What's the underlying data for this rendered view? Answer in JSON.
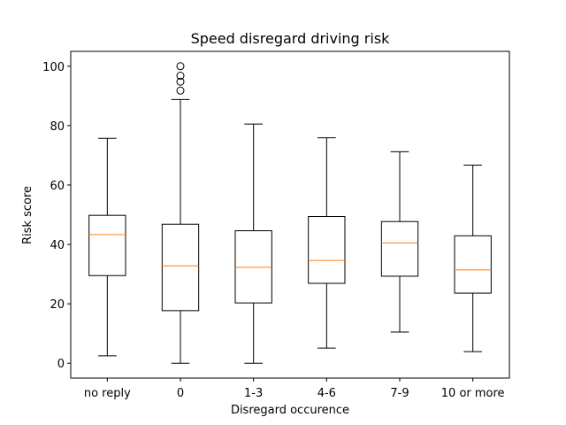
{
  "chart_data": {
    "type": "box",
    "title": "Speed disregard driving risk",
    "xlabel": "Disregard occurence",
    "ylabel": "Risk score",
    "ylim": [
      -5,
      105
    ],
    "yticks": [
      0,
      20,
      40,
      60,
      80,
      100
    ],
    "grid": false,
    "categories": [
      "no reply",
      "0",
      "1-3",
      "4-6",
      "7-9",
      "10 or more"
    ],
    "boxes": [
      {
        "category": "no reply",
        "whisker_low": 2.5,
        "q1": 29.5,
        "median": 43.3,
        "q3": 49.8,
        "whisker_high": 75.7,
        "outliers": []
      },
      {
        "category": "0",
        "whisker_low": 0,
        "q1": 17.7,
        "median": 32.8,
        "q3": 46.8,
        "whisker_high": 88.8,
        "outliers": [
          91.8,
          94.8,
          96.8,
          100
        ]
      },
      {
        "category": "1-3",
        "whisker_low": 0,
        "q1": 20.3,
        "median": 32.3,
        "q3": 44.6,
        "whisker_high": 80.5,
        "outliers": []
      },
      {
        "category": "4-6",
        "whisker_low": 5.1,
        "q1": 26.9,
        "median": 34.6,
        "q3": 49.4,
        "whisker_high": 75.9,
        "outliers": []
      },
      {
        "category": "7-9",
        "whisker_low": 10.5,
        "q1": 29.3,
        "median": 40.5,
        "q3": 47.7,
        "whisker_high": 71.2,
        "outliers": []
      },
      {
        "category": "10 or more",
        "whisker_low": 3.9,
        "q1": 23.6,
        "median": 31.4,
        "q3": 42.9,
        "whisker_high": 66.7,
        "outliers": []
      }
    ],
    "colors": {
      "box": "#000000",
      "median": "#ff7f0e",
      "axes": "#000000"
    }
  }
}
